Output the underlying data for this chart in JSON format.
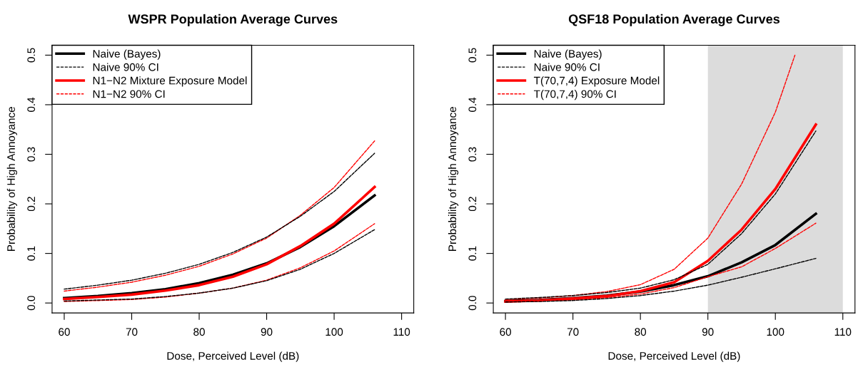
{
  "chart_data": [
    {
      "type": "line",
      "title": "WSPR Population Average Curves",
      "xlabel": "Dose, Perceived Level (dB)",
      "ylabel": "Probability of High Annoyance",
      "x": [
        60,
        65,
        70,
        75,
        80,
        85,
        90,
        95,
        100,
        106
      ],
      "xlim": [
        58.2,
        111.8
      ],
      "ylim": [
        -0.02,
        0.52
      ],
      "xticks": [
        60,
        70,
        80,
        90,
        100,
        110
      ],
      "yticks": [
        {
          "value": 0,
          "label": "0.0"
        },
        {
          "value": 0.1,
          "label": "0.1"
        },
        {
          "value": 0.2,
          "label": "0.2"
        },
        {
          "value": 0.3,
          "label": "0.3"
        },
        {
          "value": 0.4,
          "label": "0.4"
        },
        {
          "value": 0.5,
          "label": "0.5"
        }
      ],
      "grid": false,
      "legend": "top left",
      "series": [
        {
          "name": "Naive (Bayes)",
          "color": "#000000",
          "line_style": "solid",
          "values": [
            0.01,
            0.014,
            0.02,
            0.028,
            0.04,
            0.057,
            0.08,
            0.113,
            0.155,
            0.217
          ]
        },
        {
          "name": "Naive 90% CI",
          "color": "#000000",
          "line_style": "dashed",
          "values": [
            0.028,
            0.036,
            0.046,
            0.06,
            0.078,
            0.102,
            0.133,
            0.175,
            0.225,
            0.302
          ]
        },
        {
          "color": "#000000",
          "line_style": "dashed",
          "values": [
            0.004,
            0.006,
            0.008,
            0.013,
            0.02,
            0.03,
            0.045,
            0.068,
            0.1,
            0.148
          ]
        },
        {
          "name": "N1−N2 Mixture Exposure Model",
          "color": "#ff0000",
          "line_style": "solid",
          "values": [
            0.008,
            0.012,
            0.017,
            0.025,
            0.036,
            0.053,
            0.078,
            0.115,
            0.16,
            0.234
          ]
        },
        {
          "name": "N1−N2 90% CI",
          "color": "#ff0000",
          "line_style": "dashed",
          "values": [
            0.024,
            0.032,
            0.042,
            0.056,
            0.074,
            0.099,
            0.131,
            0.177,
            0.233,
            0.327
          ]
        },
        {
          "color": "#ff0000",
          "line_style": "dashed",
          "values": [
            0.003,
            0.005,
            0.007,
            0.012,
            0.02,
            0.03,
            0.046,
            0.071,
            0.105,
            0.16
          ]
        }
      ]
    },
    {
      "type": "line",
      "title": "QSF18 Population Average Curves",
      "xlabel": "Dose, Perceived Level (dB)",
      "ylabel": "Probability of High Annoyance",
      "x": [
        60,
        65,
        70,
        75,
        80,
        85,
        90,
        95,
        100,
        106
      ],
      "xlim": [
        58.2,
        111.8
      ],
      "ylim": [
        -0.02,
        0.52
      ],
      "xticks": [
        60,
        70,
        80,
        90,
        100,
        110
      ],
      "yticks": [
        {
          "value": 0,
          "label": "0.0"
        },
        {
          "value": 0.1,
          "label": "0.1"
        },
        {
          "value": 0.2,
          "label": "0.2"
        },
        {
          "value": 0.3,
          "label": "0.3"
        },
        {
          "value": 0.4,
          "label": "0.4"
        },
        {
          "value": 0.5,
          "label": "0.5"
        }
      ],
      "grid": false,
      "legend": "top left",
      "bands": [
        {
          "axis": "x",
          "from": 90,
          "to": 110,
          "color": "#dcdcdc"
        }
      ],
      "series": [
        {
          "name": "Naive (Bayes)",
          "color": "#000000",
          "line_style": "solid",
          "values": [
            0.004,
            0.006,
            0.01,
            0.015,
            0.023,
            0.036,
            0.054,
            0.082,
            0.117,
            0.18
          ]
        },
        {
          "name": "Naive 90% CI",
          "color": "#000000",
          "line_style": "dashed",
          "values": [
            0.008,
            0.011,
            0.015,
            0.021,
            0.03,
            0.047,
            0.078,
            0.14,
            0.22,
            0.347
          ]
        },
        {
          "color": "#000000",
          "line_style": "dashed",
          "values": [
            0.002,
            0.003,
            0.005,
            0.009,
            0.015,
            0.024,
            0.036,
            0.052,
            0.069,
            0.09
          ]
        },
        {
          "name": "T(70,7,4) Exposure Model",
          "color": "#ff0000",
          "line_style": "solid",
          "values": [
            0.003,
            0.005,
            0.009,
            0.014,
            0.024,
            0.042,
            0.085,
            0.148,
            0.23,
            0.36
          ]
        },
        {
          "name": "T(70,7,4) 90% CI",
          "color": "#ff0000",
          "line_style": "dashed",
          "x": [
            60,
            65,
            70,
            75,
            80,
            85,
            90,
            95,
            100,
            102.9
          ],
          "values": [
            0.007,
            0.01,
            0.015,
            0.023,
            0.037,
            0.068,
            0.131,
            0.24,
            0.385,
            0.5
          ]
        },
        {
          "color": "#ff0000",
          "line_style": "dashed",
          "values": [
            0.002,
            0.004,
            0.006,
            0.011,
            0.018,
            0.031,
            0.053,
            0.073,
            0.11,
            0.161
          ]
        }
      ]
    }
  ]
}
